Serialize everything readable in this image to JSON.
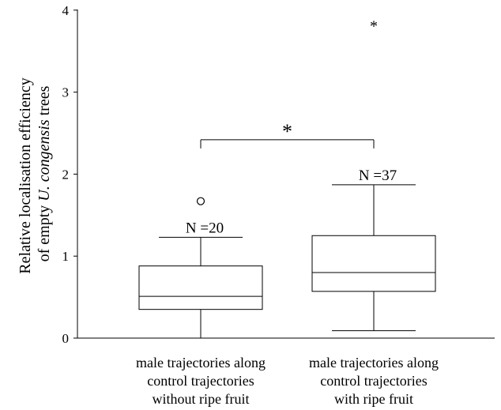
{
  "chart_data": {
    "type": "boxplot",
    "title": "",
    "ylabel_line1": "Relative localisation efficiency",
    "ylabel_line2_pre": "of empty ",
    "ylabel_line2_italic": "U. congensis",
    "ylabel_line2_post": " trees",
    "xlabel": "",
    "ylim": [
      0,
      4
    ],
    "yticks": [
      "0",
      "1",
      "2",
      "3",
      "4"
    ],
    "grid": false,
    "categories": [
      [
        "male trajectories along",
        "control trajectories",
        "without ripe fruit"
      ],
      [
        "male trajectories along",
        "control trajectories",
        "with ripe fruit"
      ]
    ],
    "boxes": [
      {
        "min": 0.0,
        "q1": 0.35,
        "median": 0.51,
        "q3": 0.88,
        "max": 1.23,
        "n_label": "N =20",
        "outliers": [
          {
            "value": 1.67,
            "symbol": "circle"
          }
        ]
      },
      {
        "min": 0.09,
        "q1": 0.57,
        "median": 0.8,
        "q3": 1.25,
        "max": 1.87,
        "n_label": "N =37",
        "outliers": [
          {
            "value": 3.84,
            "symbol": "asterisk"
          }
        ]
      }
    ],
    "significance": {
      "between": [
        0,
        1
      ],
      "y": 2.42,
      "label": "*"
    }
  }
}
